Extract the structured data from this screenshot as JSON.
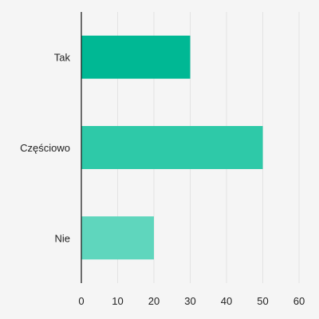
{
  "chart_data": {
    "type": "bar",
    "orientation": "horizontal",
    "title": "",
    "xlabel": "",
    "ylabel": "",
    "categories": [
      "Tak",
      "Częściowo",
      "Nie"
    ],
    "values": [
      30,
      50,
      20
    ],
    "colors": [
      "#00b894",
      "#2ec9a8",
      "#5fd6bd"
    ],
    "xlim": [
      0,
      60
    ],
    "xticks": [
      "0",
      "10",
      "20",
      "30",
      "40",
      "50",
      "60"
    ],
    "grid": "vertical",
    "legend": "none"
  }
}
